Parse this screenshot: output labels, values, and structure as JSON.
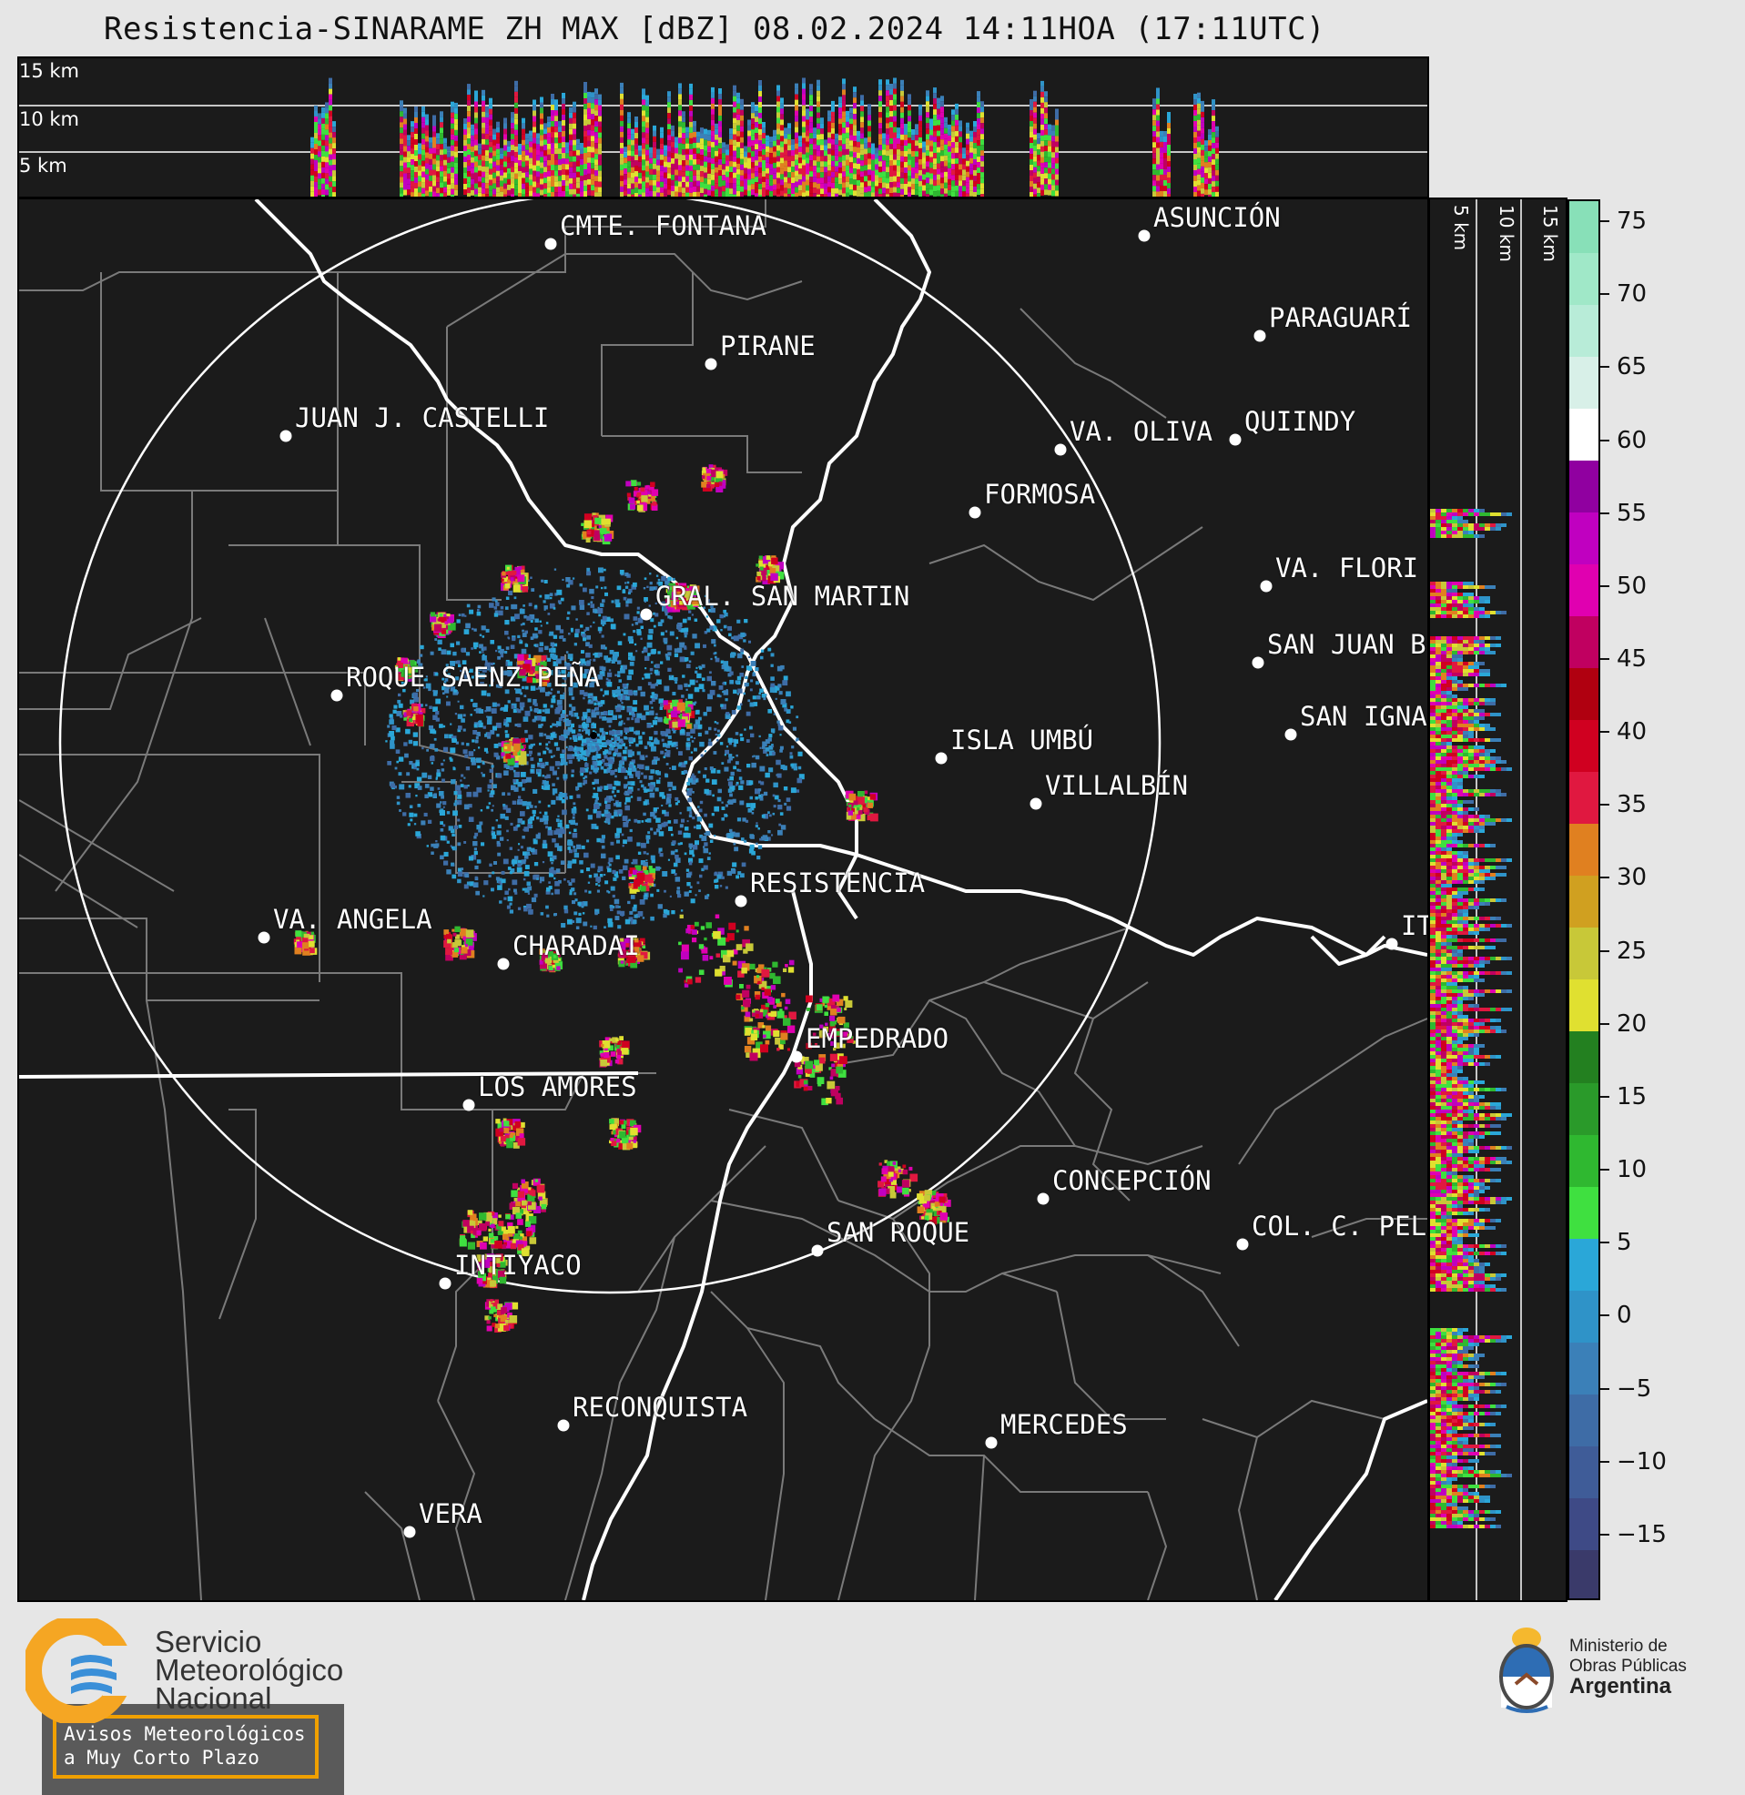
{
  "title": "Resistencia-SINARAME ZH MAX [dBZ] 08.02.2024 14:11HOA (17:11UTC)",
  "height_labels": [
    "15 km",
    "10 km",
    "5 km"
  ],
  "side_height_labels": [
    "5 km",
    "10 km",
    "15 km"
  ],
  "colorbar": {
    "ticks": [
      "75",
      "70",
      "65",
      "60",
      "55",
      "50",
      "45",
      "40",
      "35",
      "30",
      "25",
      "20",
      "15",
      "10",
      "5",
      "0",
      "−5",
      "−10",
      "−15"
    ],
    "tick_values": [
      75,
      70,
      65,
      60,
      55,
      50,
      45,
      40,
      35,
      30,
      25,
      20,
      15,
      10,
      5,
      0,
      -5,
      -10,
      -15
    ],
    "range": [
      -19.5,
      76.5
    ],
    "unit": "dBZ",
    "colors": [
      "#3a3a6a",
      "#3e4a86",
      "#3f5c98",
      "#3e6ca6",
      "#3b80b8",
      "#2f93c8",
      "#2aa7d8",
      "#3fe040",
      "#2fb830",
      "#2a9a2a",
      "#238020",
      "#e0e030",
      "#c8c838",
      "#d0a020",
      "#e08020",
      "#e01840",
      "#d00020",
      "#b00010",
      "#c00060",
      "#e000b0",
      "#c000c0",
      "#9000a0",
      "#ffffff",
      "#d8f0e8",
      "#b8ecd8",
      "#a0e8c8",
      "#88e0b8"
    ]
  },
  "cities": [
    {
      "name": "CMTE. FONTANA"
    },
    {
      "name": "PIRANE"
    },
    {
      "name": "JUAN J. CASTELLI"
    },
    {
      "name": "ASUNCIÓN"
    },
    {
      "name": "PARAGUARÍ"
    },
    {
      "name": "VA. OLIVA"
    },
    {
      "name": "QUIINDY"
    },
    {
      "name": "FORMOSA"
    },
    {
      "name": "VA. FLORI"
    },
    {
      "name": "GRAL. SAN MARTIN"
    },
    {
      "name": "SAN JUAN B"
    },
    {
      "name": "ROQUE SAENZ PEÑA"
    },
    {
      "name": "SAN IGNA"
    },
    {
      "name": "ISLA UMBÚ"
    },
    {
      "name": "VILLALBÍN"
    },
    {
      "name": "RESISTENCIA"
    },
    {
      "name": "VA. ANGELA"
    },
    {
      "name": "CHARADAI"
    },
    {
      "name": "IT"
    },
    {
      "name": "EMPEDRADO"
    },
    {
      "name": "LOS AMORES"
    },
    {
      "name": "CONCEPCIÓN"
    },
    {
      "name": "SAN ROQUE"
    },
    {
      "name": "COL. C. PEL"
    },
    {
      "name": "INTIYACO"
    },
    {
      "name": "RECONQUISTA"
    },
    {
      "name": "MERCEDES"
    },
    {
      "name": "VERA"
    }
  ],
  "alert_box": {
    "line1": "Avisos Meteorológicos",
    "line2": "a Muy Corto Plazo"
  },
  "smn_logo": {
    "line1": "Servicio",
    "line2": "Meteorológico",
    "line3": "Nacional"
  },
  "ministry_logo": {
    "line1": "Ministerio de",
    "line2": "Obras Públicas",
    "line3": "Argentina"
  }
}
